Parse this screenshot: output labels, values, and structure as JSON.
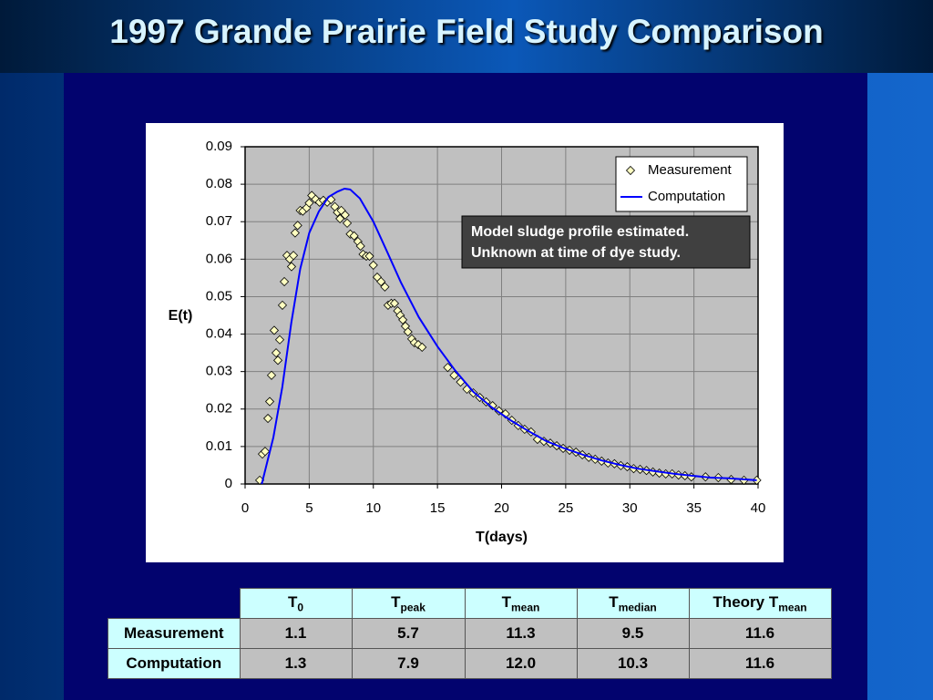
{
  "title": "1997 Grande Prairie Field Study Comparison",
  "chart_data": {
    "type": "scatter",
    "x_label": "T(days)",
    "y_label": "E(t)",
    "xlim": [
      0,
      40
    ],
    "ylim": [
      0,
      0.09
    ],
    "xticks": [
      0,
      5,
      10,
      15,
      20,
      25,
      30,
      35,
      40
    ],
    "yticks": [
      0,
      0.01,
      0.02,
      0.03,
      0.04,
      0.05,
      0.06,
      0.07,
      0.08,
      0.09
    ],
    "grid": true,
    "legend": "upper right",
    "background": "#c0c0c0",
    "annotation": [
      "Model sludge profile estimated.",
      "Unknown at time of dye study."
    ],
    "series": [
      {
        "name": "Measurement",
        "type": "scatter",
        "color": "#ffffc0",
        "x": [
          1.14,
          1.35,
          1.56,
          1.78,
          1.92,
          2.06,
          2.27,
          2.42,
          2.56,
          2.7,
          2.91,
          3.06,
          3.27,
          3.48,
          3.62,
          3.77,
          3.9,
          4.1,
          4.3,
          4.5,
          4.8,
          5.0,
          5.2,
          5.5,
          5.8,
          6.1,
          6.4,
          6.7,
          7.0,
          7.2,
          7.4,
          7.5,
          7.8,
          7.96,
          8.2,
          8.5,
          8.8,
          9.0,
          9.2,
          9.45,
          9.7,
          10.0,
          10.3,
          10.6,
          10.9,
          11.15,
          11.4,
          11.65,
          11.9,
          12.1,
          12.3,
          12.5,
          12.7,
          13.0,
          13.2,
          13.5,
          13.8,
          15.8,
          16.3,
          16.8,
          17.3,
          17.8,
          18.3,
          18.8,
          19.3,
          19.8,
          20.3,
          20.8,
          21.3,
          21.8,
          22.3,
          22.8,
          23.3,
          23.8,
          24.3,
          24.8,
          25.3,
          25.8,
          26.3,
          26.8,
          27.3,
          27.8,
          28.3,
          28.8,
          29.3,
          29.8,
          30.3,
          30.8,
          31.3,
          31.8,
          32.3,
          32.8,
          33.3,
          33.8,
          34.3,
          34.8,
          35.9,
          36.9,
          37.9,
          38.9,
          39.9
        ],
        "values": [
          0.001,
          0.008,
          0.0087,
          0.0175,
          0.022,
          0.029,
          0.041,
          0.035,
          0.033,
          0.0385,
          0.0477,
          0.054,
          0.061,
          0.06,
          0.058,
          0.061,
          0.067,
          0.069,
          0.073,
          0.0728,
          0.0737,
          0.075,
          0.077,
          0.076,
          0.0752,
          0.0757,
          0.0752,
          0.0759,
          0.074,
          0.0725,
          0.0708,
          0.073,
          0.0718,
          0.0696,
          0.0667,
          0.0662,
          0.0647,
          0.0635,
          0.0613,
          0.0608,
          0.0608,
          0.0584,
          0.0552,
          0.054,
          0.0526,
          0.0477,
          0.0482,
          0.0482,
          0.0462,
          0.045,
          0.0438,
          0.0421,
          0.0406,
          0.0387,
          0.0377,
          0.0372,
          0.0365,
          0.0311,
          0.029,
          0.0272,
          0.0253,
          0.0243,
          0.0231,
          0.0219,
          0.0209,
          0.0195,
          0.0187,
          0.017,
          0.0156,
          0.0146,
          0.0139,
          0.0119,
          0.0114,
          0.0109,
          0.0102,
          0.0095,
          0.009,
          0.0085,
          0.0078,
          0.0071,
          0.0066,
          0.0061,
          0.0056,
          0.0054,
          0.0049,
          0.0046,
          0.0041,
          0.0039,
          0.0036,
          0.0032,
          0.0029,
          0.0027,
          0.0027,
          0.0024,
          0.0022,
          0.0019,
          0.0019,
          0.0017,
          0.0012,
          0.001,
          0.001
        ]
      },
      {
        "name": "Computation",
        "type": "line",
        "color": "#0000ff",
        "x": [
          1.3,
          2.2,
          2.9,
          3.6,
          4.3,
          5.0,
          5.75,
          6.5,
          7.2,
          7.75,
          8.2,
          8.95,
          10,
          11.1,
          12.15,
          13.55,
          15,
          16.4,
          17.8,
          19.25,
          20.7,
          22.1,
          23.5,
          24.9,
          26.35,
          27.8,
          29.2,
          30.6,
          32,
          33.5,
          34.9,
          36.3,
          37.7,
          39.9
        ],
        "values": [
          0,
          0.0124,
          0.0258,
          0.043,
          0.0574,
          0.067,
          0.0727,
          0.0766,
          0.078,
          0.0788,
          0.0786,
          0.0762,
          0.07,
          0.0618,
          0.0538,
          0.0445,
          0.0367,
          0.0302,
          0.0246,
          0.0204,
          0.017,
          0.0141,
          0.0114,
          0.0095,
          0.0078,
          0.0063,
          0.0051,
          0.0041,
          0.0034,
          0.0027,
          0.0022,
          0.0017,
          0.0015,
          0.001
        ]
      }
    ]
  },
  "table": {
    "columns": [
      {
        "main": "T",
        "sub": "0"
      },
      {
        "main": "T",
        "sub": "peak"
      },
      {
        "main": "T",
        "sub": "mean"
      },
      {
        "main": "T",
        "sub": "median"
      },
      {
        "main": "Theory T",
        "sub": "mean"
      }
    ],
    "rows": [
      [
        "Measurement",
        "1.1",
        "5.7",
        "11.3",
        "9.5",
        "11.6"
      ],
      [
        "Computation",
        "1.3",
        "7.9",
        "12.0",
        "10.3",
        "11.6"
      ]
    ]
  }
}
